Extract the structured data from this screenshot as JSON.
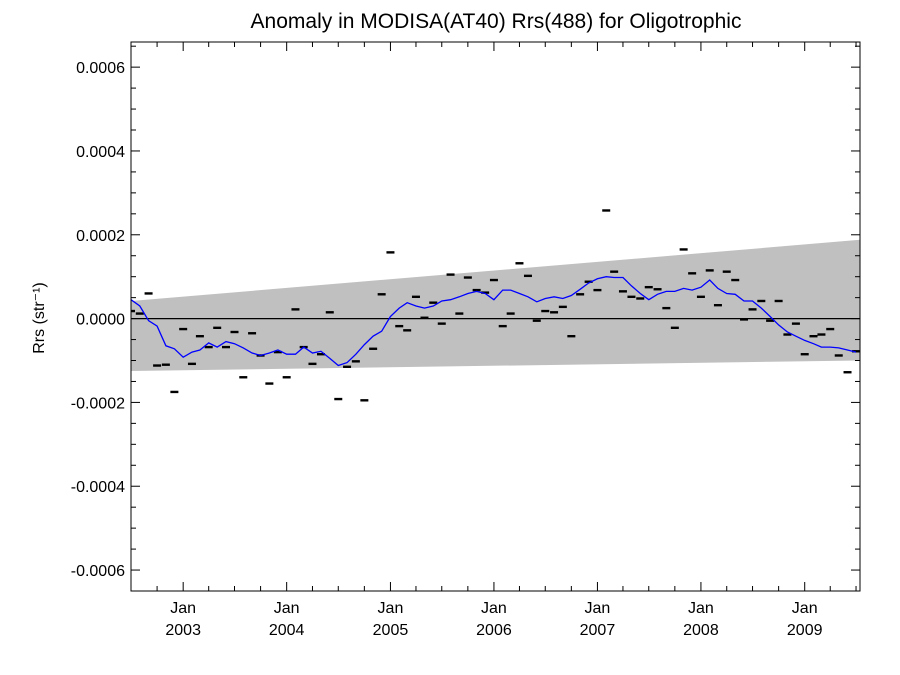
{
  "chart_data": {
    "type": "line",
    "title": "Anomaly in MODISA(AT40) Rrs(488) for Oligotrophic",
    "ylabel": "Rrs (str⁻¹)",
    "xlabel": "",
    "xlim": [
      "2002-07-01",
      "2009-07-15"
    ],
    "ylim": [
      -0.00065,
      0.00066
    ],
    "x_ticks": [
      {
        "month": "Jan",
        "year": "2003",
        "date": "2003-01-01"
      },
      {
        "month": "Jan",
        "year": "2004",
        "date": "2004-01-01"
      },
      {
        "month": "Jan",
        "year": "2005",
        "date": "2005-01-01"
      },
      {
        "month": "Jan",
        "year": "2006",
        "date": "2006-01-01"
      },
      {
        "month": "Jan",
        "year": "2007",
        "date": "2007-01-01"
      },
      {
        "month": "Jan",
        "year": "2008",
        "date": "2008-01-01"
      },
      {
        "month": "Jan",
        "year": "2009",
        "date": "2009-01-01"
      }
    ],
    "y_ticks": [
      {
        "value": 0.0006,
        "label": "0.0006"
      },
      {
        "value": 0.0004,
        "label": "0.0004"
      },
      {
        "value": 0.0002,
        "label": "0.0002"
      },
      {
        "value": 0.0,
        "label": "0.0000"
      },
      {
        "value": -0.0002,
        "label": "-0.0002"
      },
      {
        "value": -0.0004,
        "label": "-0.0004"
      },
      {
        "value": -0.0006,
        "label": "-0.0006"
      }
    ],
    "band": {
      "color": "#c0c0c0",
      "x": [
        "2002-07-01",
        "2009-07-15"
      ],
      "upper": [
        4.2e-05,
        0.000188
      ],
      "lower": [
        -0.000125,
        -0.0001
      ]
    },
    "zero_line": 0.0,
    "series": [
      {
        "style": "markers",
        "marker": "dash",
        "color": "#000000",
        "x": [
          "2002-07-01",
          "2002-08-01",
          "2002-09-01",
          "2002-10-01",
          "2002-11-01",
          "2002-12-01",
          "2003-01-01",
          "2003-02-01",
          "2003-03-01",
          "2003-04-01",
          "2003-05-01",
          "2003-06-01",
          "2003-07-01",
          "2003-08-01",
          "2003-09-01",
          "2003-10-01",
          "2003-11-01",
          "2003-12-01",
          "2004-01-01",
          "2004-02-01",
          "2004-03-01",
          "2004-04-01",
          "2004-05-01",
          "2004-06-01",
          "2004-07-01",
          "2004-08-01",
          "2004-09-01",
          "2004-10-01",
          "2004-11-01",
          "2004-12-01",
          "2005-01-01",
          "2005-02-01",
          "2005-03-01",
          "2005-04-01",
          "2005-05-01",
          "2005-06-01",
          "2005-07-01",
          "2005-08-01",
          "2005-09-01",
          "2005-10-01",
          "2005-11-01",
          "2005-12-01",
          "2006-01-01",
          "2006-02-01",
          "2006-03-01",
          "2006-04-01",
          "2006-05-01",
          "2006-06-01",
          "2006-07-01",
          "2006-08-01",
          "2006-09-01",
          "2006-10-01",
          "2006-11-01",
          "2006-12-01",
          "2007-01-01",
          "2007-02-01",
          "2007-03-01",
          "2007-04-01",
          "2007-05-01",
          "2007-06-01",
          "2007-07-01",
          "2007-08-01",
          "2007-09-01",
          "2007-10-01",
          "2007-11-01",
          "2007-12-01",
          "2008-01-01",
          "2008-02-01",
          "2008-03-01",
          "2008-04-01",
          "2008-05-01",
          "2008-06-01",
          "2008-07-01",
          "2008-08-01",
          "2008-09-01",
          "2008-10-01",
          "2008-11-01",
          "2008-12-01",
          "2009-01-01",
          "2009-02-01",
          "2009-03-01",
          "2009-04-01",
          "2009-05-01",
          "2009-06-01",
          "2009-07-01"
        ],
        "y": [
          1.8e-05,
          1.2e-05,
          6e-05,
          -0.000112,
          -0.00011,
          -0.000175,
          -2.5e-05,
          -0.000108,
          -4.2e-05,
          -6.8e-05,
          -2.2e-05,
          -6.8e-05,
          -3.2e-05,
          -0.00014,
          -3.5e-05,
          -8.8e-05,
          -0.000155,
          -8e-05,
          -0.00014,
          2.2e-05,
          -6.8e-05,
          -0.000108,
          -8.5e-05,
          1.5e-05,
          -0.000192,
          -0.000115,
          -0.000102,
          -0.000195,
          -7.2e-05,
          5.8e-05,
          0.000158,
          -1.8e-05,
          -2.8e-05,
          5.2e-05,
          2e-06,
          3.8e-05,
          -1.2e-05,
          0.000105,
          1.2e-05,
          9.8e-05,
          6.8e-05,
          6.2e-05,
          9.2e-05,
          -1.8e-05,
          1.2e-05,
          0.000132,
          0.000102,
          -5e-06,
          1.8e-05,
          1.5e-05,
          2.8e-05,
          -4.2e-05,
          5.8e-05,
          8.8e-05,
          6.8e-05,
          0.000258,
          0.000112,
          6.5e-05,
          5.2e-05,
          4.8e-05,
          7.5e-05,
          7e-05,
          2.5e-05,
          -2.2e-05,
          0.000165,
          0.000108,
          5.2e-05,
          0.000115,
          3.2e-05,
          0.000112,
          9.2e-05,
          -2e-06,
          2.2e-05,
          4.2e-05,
          -5e-06,
          4.2e-05,
          -3.8e-05,
          -1.2e-05,
          -8.5e-05,
          -4.2e-05,
          -3.8e-05,
          -2.5e-05,
          -8.8e-05,
          -0.000128,
          -7.8e-05
        ]
      },
      {
        "style": "line",
        "color": "#0000ff",
        "x": [
          "2002-07-01",
          "2002-08-01",
          "2002-09-01",
          "2002-10-01",
          "2002-11-01",
          "2002-12-01",
          "2003-01-01",
          "2003-02-01",
          "2003-03-01",
          "2003-04-01",
          "2003-05-01",
          "2003-06-01",
          "2003-07-01",
          "2003-08-01",
          "2003-09-01",
          "2003-10-01",
          "2003-11-01",
          "2003-12-01",
          "2004-01-01",
          "2004-02-01",
          "2004-03-01",
          "2004-04-01",
          "2004-05-01",
          "2004-06-01",
          "2004-07-01",
          "2004-08-01",
          "2004-09-01",
          "2004-10-01",
          "2004-11-01",
          "2004-12-01",
          "2005-01-01",
          "2005-02-01",
          "2005-03-01",
          "2005-04-01",
          "2005-05-01",
          "2005-06-01",
          "2005-07-01",
          "2005-08-01",
          "2005-09-01",
          "2005-10-01",
          "2005-11-01",
          "2005-12-01",
          "2006-01-01",
          "2006-02-01",
          "2006-03-01",
          "2006-04-01",
          "2006-05-01",
          "2006-06-01",
          "2006-07-01",
          "2006-08-01",
          "2006-09-01",
          "2006-10-01",
          "2006-11-01",
          "2006-12-01",
          "2007-01-01",
          "2007-02-01",
          "2007-03-01",
          "2007-04-01",
          "2007-05-01",
          "2007-06-01",
          "2007-07-01",
          "2007-08-01",
          "2007-09-01",
          "2007-10-01",
          "2007-11-01",
          "2007-12-01",
          "2008-01-01",
          "2008-02-01",
          "2008-03-01",
          "2008-04-01",
          "2008-05-01",
          "2008-06-01",
          "2008-07-01",
          "2008-08-01",
          "2008-09-01",
          "2008-10-01",
          "2008-11-01",
          "2008-12-01",
          "2009-01-01",
          "2009-02-01",
          "2009-03-01",
          "2009-04-01",
          "2009-05-01",
          "2009-06-01",
          "2009-07-01"
        ],
        "y": [
          4.5e-05,
          3e-05,
          -5e-06,
          -1.8e-05,
          -6.5e-05,
          -7.2e-05,
          -9.2e-05,
          -8e-05,
          -7.5e-05,
          -5.8e-05,
          -6.8e-05,
          -5.5e-05,
          -6e-05,
          -7e-05,
          -8.2e-05,
          -8.8e-05,
          -8.2e-05,
          -7.5e-05,
          -8.5e-05,
          -8.5e-05,
          -6.8e-05,
          -8.2e-05,
          -7.8e-05,
          -9.5e-05,
          -0.000112,
          -0.000105,
          -8.5e-05,
          -6.2e-05,
          -4.2e-05,
          -3e-05,
          5e-06,
          2.5e-05,
          3.8e-05,
          3e-05,
          2.5e-05,
          3e-05,
          4.2e-05,
          4.5e-05,
          5.2e-05,
          6e-05,
          6.5e-05,
          6e-05,
          4.5e-05,
          6.8e-05,
          6.8e-05,
          6e-05,
          5.2e-05,
          4e-05,
          4.8e-05,
          5.2e-05,
          4.8e-05,
          5.5e-05,
          7e-05,
          8.5e-05,
          9.5e-05,
          0.0001,
          9.8e-05,
          9.8e-05,
          7.8e-05,
          6e-05,
          4.5e-05,
          5.8e-05,
          6.5e-05,
          6.5e-05,
          7.2e-05,
          6.8e-05,
          7.5e-05,
          9.2e-05,
          7.2e-05,
          6e-05,
          5.8e-05,
          4.2e-05,
          4.2e-05,
          2.5e-05,
          5e-06,
          -1.5e-05,
          -3.2e-05,
          -4.2e-05,
          -5.2e-05,
          -6e-05,
          -6.8e-05,
          -6.8e-05,
          -7e-05,
          -7.5e-05,
          -8e-05
        ]
      }
    ]
  }
}
